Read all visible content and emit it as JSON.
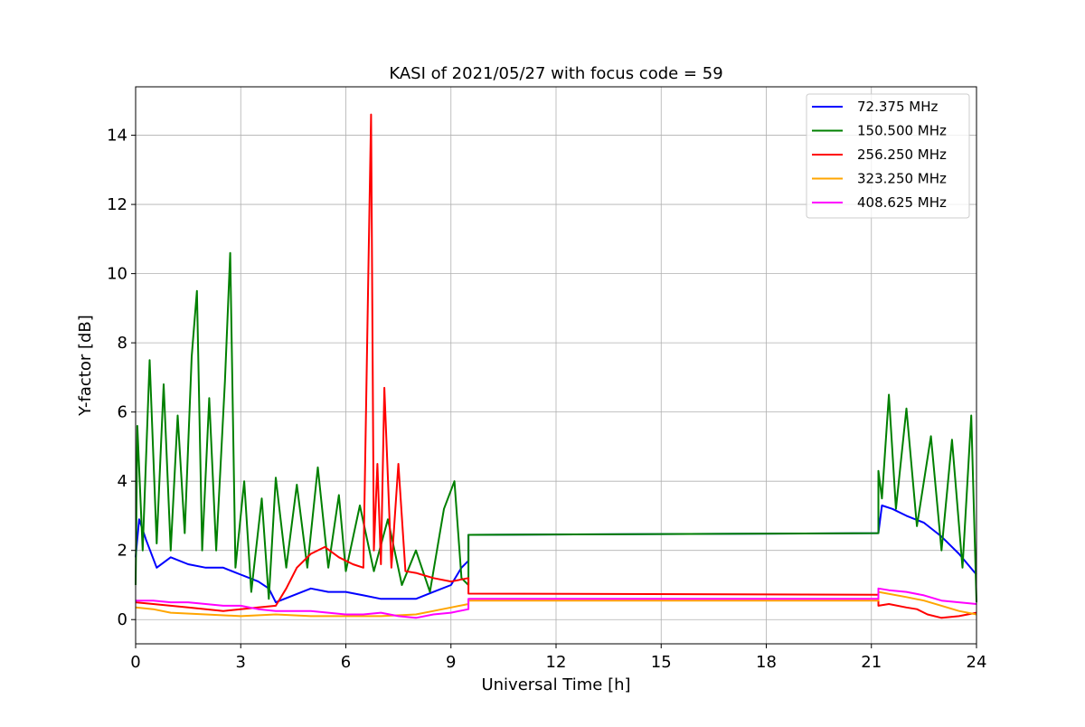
{
  "chart_data": {
    "type": "line",
    "title": "KASI of 2021/05/27 with focus code = 59",
    "xlabel": "Universal Time [h]",
    "ylabel": "Y-factor [dB]",
    "xlim": [
      0,
      24
    ],
    "ylim": [
      -0.7,
      15.4
    ],
    "xticks": [
      0,
      3,
      6,
      9,
      12,
      15,
      18,
      21,
      24
    ],
    "yticks": [
      0,
      2,
      4,
      6,
      8,
      10,
      12,
      14
    ],
    "grid": true,
    "legend_position": "upper-right",
    "series": [
      {
        "name": " 72.375 MHz",
        "color": "#0000ff",
        "x": [
          0,
          0.1,
          0.3,
          0.6,
          1.0,
          1.5,
          2.0,
          2.5,
          3.0,
          3.5,
          3.8,
          4.0,
          4.5,
          5.0,
          5.5,
          6.0,
          6.5,
          7.0,
          7.5,
          8.0,
          8.5,
          9.0,
          9.3,
          9.5,
          9.5,
          21.2,
          21.2,
          21.3,
          21.6,
          22.0,
          22.5,
          23.0,
          23.5,
          24.0
        ],
        "y": [
          1.8,
          2.9,
          2.3,
          1.5,
          1.8,
          1.6,
          1.5,
          1.5,
          1.3,
          1.1,
          0.9,
          0.5,
          0.7,
          0.9,
          0.8,
          0.8,
          0.7,
          0.6,
          0.6,
          0.6,
          0.8,
          1.0,
          1.5,
          1.7,
          2.45,
          2.5,
          2.5,
          3.3,
          3.2,
          3.0,
          2.8,
          2.4,
          1.9,
          1.3
        ]
      },
      {
        "name": "150.500 MHz",
        "color": "#008000",
        "x": [
          0,
          0.05,
          0.2,
          0.4,
          0.6,
          0.8,
          1.0,
          1.2,
          1.4,
          1.6,
          1.75,
          1.9,
          2.1,
          2.3,
          2.55,
          2.7,
          2.85,
          3.1,
          3.3,
          3.6,
          3.8,
          4.0,
          4.3,
          4.6,
          4.9,
          5.2,
          5.5,
          5.8,
          6.0,
          6.4,
          6.8,
          7.2,
          7.6,
          8.0,
          8.4,
          8.8,
          9.1,
          9.3,
          9.5,
          9.5,
          21.2,
          21.2,
          21.3,
          21.5,
          21.7,
          22.0,
          22.3,
          22.7,
          23.0,
          23.3,
          23.6,
          23.85,
          24.0
        ],
        "y": [
          1.0,
          5.6,
          2.0,
          7.5,
          2.2,
          6.8,
          2.0,
          5.9,
          2.5,
          7.6,
          9.5,
          2.0,
          6.4,
          2.0,
          6.9,
          10.6,
          1.5,
          4.0,
          0.8,
          3.5,
          0.6,
          4.1,
          1.5,
          3.9,
          1.5,
          4.4,
          1.5,
          3.6,
          1.4,
          3.3,
          1.4,
          2.9,
          1.0,
          2.0,
          0.8,
          3.2,
          4.0,
          1.2,
          1.0,
          2.45,
          2.5,
          4.3,
          3.5,
          6.5,
          3.2,
          6.1,
          2.7,
          5.3,
          2.0,
          5.2,
          1.5,
          5.9,
          0.5
        ]
      },
      {
        "name": "256.250 MHz",
        "color": "#ff0000",
        "x": [
          0,
          0.5,
          1.0,
          1.5,
          2.0,
          2.5,
          3.0,
          3.5,
          4.0,
          4.3,
          4.6,
          5.0,
          5.4,
          5.8,
          6.2,
          6.5,
          6.65,
          6.72,
          6.8,
          6.9,
          7.0,
          7.1,
          7.3,
          7.5,
          7.7,
          8.0,
          8.5,
          9.0,
          9.5,
          9.5,
          21.2,
          21.2,
          21.5,
          22.0,
          22.3,
          22.6,
          23.0,
          23.5,
          24.0
        ],
        "y": [
          0.5,
          0.45,
          0.4,
          0.35,
          0.3,
          0.25,
          0.3,
          0.35,
          0.4,
          0.9,
          1.5,
          1.9,
          2.1,
          1.8,
          1.6,
          1.5,
          10.5,
          14.6,
          2.0,
          4.5,
          1.6,
          6.7,
          1.5,
          4.5,
          1.4,
          1.35,
          1.2,
          1.1,
          1.2,
          0.75,
          0.72,
          0.4,
          0.45,
          0.35,
          0.3,
          0.15,
          0.05,
          0.1,
          0.2
        ]
      },
      {
        "name": "323.250 MHz",
        "color": "#ffa500",
        "x": [
          0,
          0.5,
          1.0,
          2.0,
          3.0,
          4.0,
          5.0,
          6.0,
          7.0,
          8.0,
          8.5,
          9.0,
          9.5,
          9.5,
          21.2,
          21.2,
          22.0,
          22.5,
          23.0,
          23.5,
          24.0
        ],
        "y": [
          0.35,
          0.3,
          0.2,
          0.15,
          0.1,
          0.15,
          0.1,
          0.1,
          0.1,
          0.15,
          0.25,
          0.35,
          0.45,
          0.55,
          0.55,
          0.8,
          0.65,
          0.55,
          0.4,
          0.25,
          0.15
        ]
      },
      {
        "name": "408.625 MHz",
        "color": "#ff00ff",
        "x": [
          0,
          0.5,
          1.0,
          1.5,
          2.0,
          2.5,
          3.0,
          3.5,
          4.0,
          4.5,
          5.0,
          5.5,
          6.0,
          6.5,
          7.0,
          7.5,
          8.0,
          8.5,
          9.0,
          9.5,
          9.5,
          21.2,
          21.2,
          21.5,
          22.0,
          22.5,
          23.0,
          23.5,
          24.0
        ],
        "y": [
          0.55,
          0.55,
          0.5,
          0.5,
          0.45,
          0.4,
          0.4,
          0.3,
          0.25,
          0.25,
          0.25,
          0.2,
          0.15,
          0.15,
          0.2,
          0.1,
          0.05,
          0.15,
          0.2,
          0.3,
          0.6,
          0.6,
          0.9,
          0.85,
          0.8,
          0.7,
          0.55,
          0.5,
          0.45
        ]
      }
    ]
  }
}
